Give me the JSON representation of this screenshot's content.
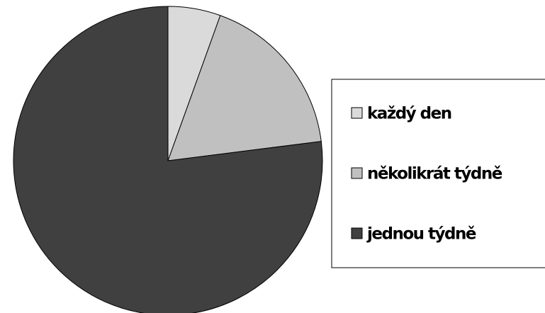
{
  "chart_data": {
    "type": "pie",
    "categories": [
      "každý den",
      "několikrát týdně",
      "jednou týdně"
    ],
    "values": [
      5.5,
      17.5,
      77
    ],
    "colors": [
      "#dadada",
      "#c0c0c0",
      "#404040"
    ],
    "legend": "right"
  }
}
